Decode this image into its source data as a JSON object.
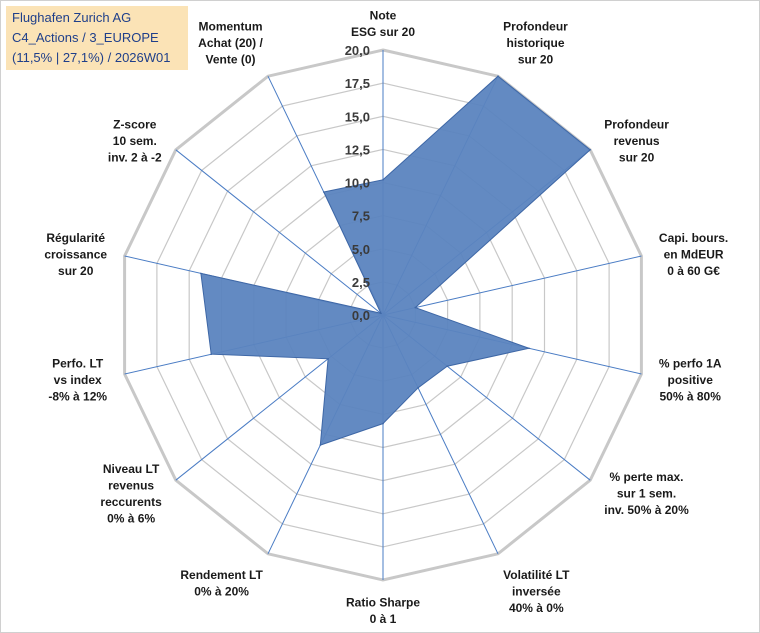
{
  "title_box": {
    "line1": "Flughafen Zurich AG",
    "line2": "C4_Actions / 3_EUROPE",
    "line3": "(11,5% | 27,1%) / 2026W01"
  },
  "colors": {
    "fill": "#5b84bf",
    "stroke": "#3e67a6",
    "grid": "#c8c8c8",
    "spoke": "#4a7cc4",
    "title_bg": "#fbe3b6",
    "title_text": "#1f3f8a"
  },
  "chart_data": {
    "type": "radar",
    "title": "Flughafen Zurich AG",
    "rmin": 0,
    "rmax": 20,
    "ticks": [
      "0,0",
      "2,5",
      "5,0",
      "7,5",
      "10,0",
      "12,5",
      "15,0",
      "17,5",
      "20,0"
    ],
    "tick_values": [
      0,
      2.5,
      5,
      7.5,
      10,
      12.5,
      15,
      17.5,
      20
    ],
    "axes": [
      {
        "lines": [
          "Note",
          "ESG sur 20"
        ]
      },
      {
        "lines": [
          "Profondeur",
          "historique",
          "sur 20"
        ]
      },
      {
        "lines": [
          "Profondeur",
          "revenus",
          "sur 20"
        ]
      },
      {
        "lines": [
          "Capi. bours.",
          "en MdEUR",
          "0 à 60 G€"
        ]
      },
      {
        "lines": [
          "% perfo 1A",
          "positive",
          "50% à 80%"
        ]
      },
      {
        "lines": [
          "% perte max.",
          "sur 1 sem.",
          "inv. 50% à 20%"
        ]
      },
      {
        "lines": [
          "Volatilité LT",
          "inversée",
          "40% à 0%"
        ]
      },
      {
        "lines": [
          "Ratio Sharpe",
          "0 à 1"
        ]
      },
      {
        "lines": [
          "Rendement LT",
          "0% à 20%"
        ]
      },
      {
        "lines": [
          "Niveau LT",
          "revenus",
          "reccurents",
          "0% à 6%"
        ]
      },
      {
        "lines": [
          "Perfo. LT",
          "vs index",
          "-8% à 12%"
        ]
      },
      {
        "lines": [
          "Régularité",
          "croissance",
          "sur 20"
        ]
      },
      {
        "lines": [
          "Z-score",
          "10 sem.",
          "inv. 2 à -2"
        ]
      },
      {
        "lines": [
          "Momentum",
          "Achat (20) /",
          "Vente (0)"
        ]
      }
    ],
    "series": [
      {
        "name": "Flughafen Zurich AG",
        "values": [
          10.2,
          20,
          20,
          2.5,
          11.3,
          6.2,
          6.1,
          8.2,
          10.9,
          5.3,
          13.3,
          14.1,
          0.2,
          10.3
        ]
      }
    ]
  }
}
